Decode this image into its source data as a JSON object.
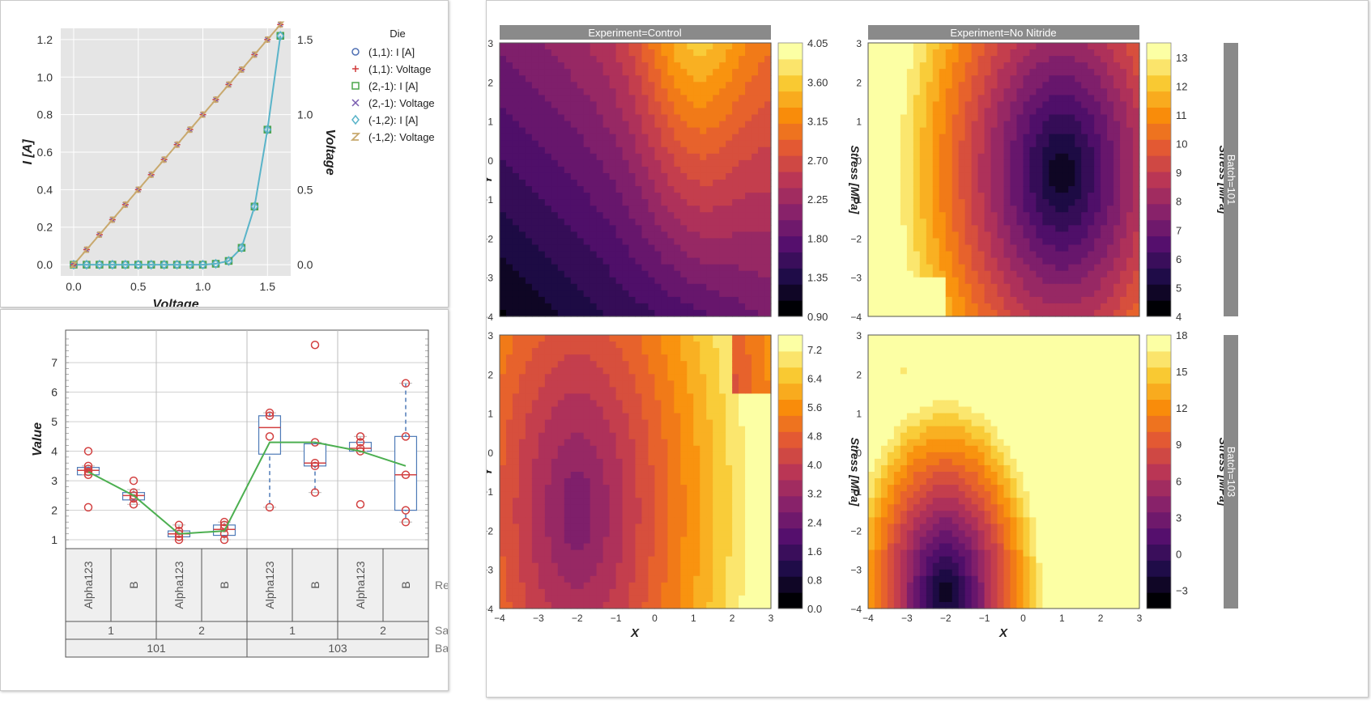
{
  "colors": {
    "plot_bg": "#e5e5e5",
    "strip_bg": "#8a8a8a",
    "line_ia": "#5ab4c9",
    "line_volt": "#c8a96e",
    "mean_line": "#4caf50",
    "box_outline": "#4e7ab7",
    "outlier": "#d24040"
  },
  "chart_data": [
    {
      "type": "line",
      "legend_title": "Die",
      "xlabel": "Voltage",
      "ylabel": "I [A]",
      "y2label": "Voltage",
      "xlim": [
        -0.1,
        1.68
      ],
      "ylim": [
        -0.06,
        1.26
      ],
      "y2lim": [
        -0.075,
        1.575
      ],
      "x_ticks": [
        "0.0",
        "0.5",
        "1.0",
        "1.5"
      ],
      "y_ticks": [
        "0.0",
        "0.2",
        "0.4",
        "0.6",
        "0.8",
        "1.0",
        "1.2"
      ],
      "y2_ticks": [
        "0.0",
        "0.5",
        "1.0",
        "1.5"
      ],
      "x": [
        0.0,
        0.1,
        0.2,
        0.3,
        0.4,
        0.5,
        0.6,
        0.7,
        0.8,
        0.9,
        1.0,
        1.1,
        1.2,
        1.3,
        1.4,
        1.5,
        1.6
      ],
      "current": [
        0,
        0,
        0,
        0,
        0,
        0,
        0,
        0,
        0,
        0,
        0,
        0.005,
        0.02,
        0.09,
        0.31,
        0.72,
        1.22
      ],
      "voltage": [
        0.0,
        0.1,
        0.2,
        0.3,
        0.4,
        0.5,
        0.6,
        0.7,
        0.8,
        0.9,
        1.0,
        1.1,
        1.2,
        1.3,
        1.4,
        1.5,
        1.6
      ],
      "legend": [
        {
          "label": "(1,1): I [A]",
          "marker": "circle",
          "color": "#4e6fb3"
        },
        {
          "label": "(1,1): Voltage",
          "marker": "plus",
          "color": "#d03a3a"
        },
        {
          "label": "(2,-1): I [A]",
          "marker": "square",
          "color": "#4ca64c"
        },
        {
          "label": "(2,-1): Voltage",
          "marker": "x",
          "color": "#7a5db0"
        },
        {
          "label": "(-1,2): I [A]",
          "marker": "diamond",
          "color": "#5ab4c9"
        },
        {
          "label": "(-1,2): Voltage",
          "marker": "z",
          "color": "#c8a96e"
        }
      ]
    },
    {
      "type": "box",
      "ylabel": "Value",
      "ylim": [
        0.7,
        8.1
      ],
      "y_ticks": [
        "1",
        "2",
        "3",
        "4",
        "5",
        "6",
        "7"
      ],
      "groups": [
        {
          "region": "Alpha123",
          "sample": "1",
          "batch": "101",
          "q1": 3.2,
          "median": 3.35,
          "q3": 3.45,
          "wlo": 3.2,
          "whi": 3.5,
          "outliers": [
            4.0,
            2.1
          ],
          "points": [
            3.2,
            3.3,
            3.4,
            3.5
          ]
        },
        {
          "region": "B",
          "sample": "1",
          "batch": "101",
          "q1": 2.35,
          "median": 2.5,
          "q3": 2.6,
          "wlo": 2.2,
          "whi": 2.7,
          "outliers": [
            3.0
          ],
          "points": [
            2.2,
            2.4,
            2.5,
            2.6
          ]
        },
        {
          "region": "Alpha123",
          "sample": "2",
          "batch": "101",
          "q1": 1.1,
          "median": 1.2,
          "q3": 1.3,
          "wlo": 1.0,
          "whi": 1.5,
          "outliers": [],
          "points": [
            1.0,
            1.1,
            1.2,
            1.3,
            1.5
          ]
        },
        {
          "region": "B",
          "sample": "2",
          "batch": "101",
          "q1": 1.15,
          "median": 1.35,
          "q3": 1.5,
          "wlo": 1.0,
          "whi": 1.6,
          "outliers": [],
          "points": [
            1.0,
            1.2,
            1.4,
            1.5,
            1.6
          ]
        },
        {
          "region": "Alpha123",
          "sample": "1",
          "batch": "103",
          "q1": 3.9,
          "median": 4.8,
          "q3": 5.2,
          "wlo": 2.1,
          "whi": 5.3,
          "outliers": [],
          "points": [
            2.1,
            4.5,
            5.2,
            5.3
          ]
        },
        {
          "region": "B",
          "sample": "1",
          "batch": "103",
          "q1": 3.5,
          "median": 3.6,
          "q3": 4.25,
          "wlo": 2.6,
          "whi": 4.3,
          "outliers": [
            7.6
          ],
          "points": [
            2.6,
            3.5,
            3.6,
            4.3
          ]
        },
        {
          "region": "Alpha123",
          "sample": "2",
          "batch": "103",
          "q1": 4.0,
          "median": 4.1,
          "q3": 4.3,
          "wlo": 4.0,
          "whi": 4.5,
          "outliers": [
            2.2
          ],
          "points": [
            4.0,
            4.1,
            4.3,
            4.5
          ]
        },
        {
          "region": "B",
          "sample": "2",
          "batch": "103",
          "q1": 2.0,
          "median": 3.2,
          "q3": 4.5,
          "wlo": 1.6,
          "whi": 6.3,
          "outliers": [],
          "points": [
            1.6,
            2.0,
            3.2,
            4.5,
            6.3
          ]
        }
      ],
      "means": [
        3.3,
        2.5,
        1.2,
        1.3,
        4.3,
        4.3,
        4.0,
        3.5
      ],
      "level_labels": [
        "Region",
        "Sample",
        "Batch"
      ]
    },
    {
      "type": "heatmap",
      "subtype": "filled-contour",
      "colormap": "inferno",
      "xlabel": "X",
      "ylabel": "Y",
      "xlim": [
        -4,
        3
      ],
      "ylim": [
        -4,
        3
      ],
      "x_ticks": [
        "−4",
        "−3",
        "−2",
        "−1",
        "0",
        "1",
        "2",
        "3"
      ],
      "y_ticks": [
        "3",
        "2",
        "1",
        "0",
        "−1",
        "−2",
        "−3",
        "−4"
      ],
      "col_strips": [
        "Experiment=Control",
        "Experiment=No Nitride"
      ],
      "row_strips": [
        "Batch=101",
        "Batch=103"
      ],
      "colorbar_label": "Stress [MPa]",
      "panels": [
        {
          "name": "control-101",
          "vmin": 0.9,
          "vmax": 4.05,
          "cbar_ticks": [
            "4.05",
            "3.60",
            "3.15",
            "2.70",
            "2.25",
            "1.80",
            "1.35",
            "0.90"
          ]
        },
        {
          "name": "nonitride-101",
          "vmin": 4,
          "vmax": 13.5,
          "cbar_ticks": [
            "13",
            "12",
            "11",
            "10",
            "9",
            "8",
            "7",
            "6",
            "5",
            "4"
          ]
        },
        {
          "name": "control-103",
          "vmin": 0.0,
          "vmax": 7.6,
          "cbar_ticks": [
            "7.2",
            "6.4",
            "5.6",
            "4.8",
            "4.0",
            "3.2",
            "2.4",
            "1.6",
            "0.8",
            "0.0"
          ]
        },
        {
          "name": "nonitride-103",
          "vmin": -4.5,
          "vmax": 18,
          "cbar_ticks": [
            "18",
            "15",
            "12",
            "9",
            "6",
            "3",
            "0",
            "−3"
          ]
        }
      ]
    }
  ]
}
